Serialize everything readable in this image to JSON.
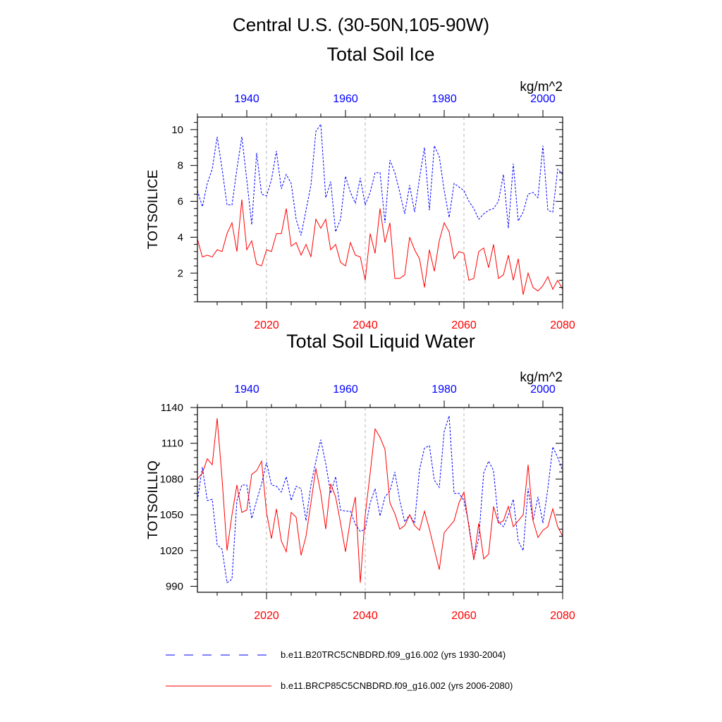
{
  "header": {
    "region": "Central U.S. (30-50N,105-90W)"
  },
  "colors": {
    "historical": "#0000ff",
    "future": "#ff0000",
    "axis": "#000000",
    "gridline": "#b3b3b3"
  },
  "legend": {
    "historical_label": "b.e11.B20TRC5CNBDRD.f09_g16.002 (yrs 1930-2004)",
    "future_label": "b.e11.BRCP85C5CNBDRD.f09_g16.002 (yrs 2006-2080)"
  },
  "chart_data": [
    {
      "type": "line",
      "title": "Total Soil Ice",
      "ylabel": "TOTSOILICE",
      "units": "kg/m^2",
      "ylim": [
        0.4,
        10.7
      ],
      "yticks": [
        2,
        4,
        6,
        8,
        10
      ],
      "bottom_axis": {
        "xlim": [
          2006,
          2080
        ],
        "ticks": [
          "2020",
          "2040",
          "2060",
          "2080"
        ]
      },
      "top_axis": {
        "xlim": [
          1930,
          2004
        ],
        "ticks": [
          "1940",
          "1960",
          "1980",
          "2000"
        ]
      },
      "grid": "dashed vertical lines at bottom-axis ticks",
      "series": [
        {
          "name": "b.e11.B20TRC5CNBDRD.f09_g16.002 (yrs 1930-2004)",
          "axis": "top",
          "style": "dashed",
          "x": [
            1930,
            1931,
            1932,
            1933,
            1934,
            1935,
            1936,
            1937,
            1938,
            1939,
            1940,
            1941,
            1942,
            1943,
            1944,
            1945,
            1946,
            1947,
            1948,
            1949,
            1950,
            1951,
            1952,
            1953,
            1954,
            1955,
            1956,
            1957,
            1958,
            1959,
            1960,
            1961,
            1962,
            1963,
            1964,
            1965,
            1966,
            1967,
            1968,
            1969,
            1970,
            1971,
            1972,
            1973,
            1974,
            1975,
            1976,
            1977,
            1978,
            1979,
            1980,
            1981,
            1982,
            1983,
            1984,
            1985,
            1986,
            1987,
            1988,
            1989,
            1990,
            1991,
            1992,
            1993,
            1994,
            1995,
            1996,
            1997,
            1998,
            1999,
            2000,
            2001,
            2002,
            2003,
            2004
          ],
          "values": [
            6.6,
            5.7,
            7.0,
            7.8,
            9.6,
            7.8,
            5.8,
            5.8,
            7.8,
            9.6,
            7.2,
            4.7,
            8.7,
            6.4,
            6.3,
            7.2,
            8.8,
            6.7,
            7.5,
            7.0,
            5.0,
            4.1,
            5.5,
            6.9,
            9.9,
            10.3,
            6.2,
            7.1,
            4.3,
            5.0,
            7.4,
            6.5,
            5.9,
            7.3,
            5.8,
            6.5,
            7.6,
            7.6,
            4.8,
            8.3,
            7.6,
            6.5,
            5.3,
            6.9,
            5.4,
            7.3,
            9.0,
            5.5,
            9.1,
            8.5,
            6.6,
            5.1,
            7.0,
            6.8,
            6.6,
            6.0,
            5.6,
            5.0,
            5.3,
            5.5,
            5.6,
            6.0,
            7.5,
            4.5,
            8.1,
            4.9,
            5.4,
            6.4,
            6.5,
            6.2,
            9.1,
            5.5,
            5.4,
            7.8,
            7.5
          ]
        },
        {
          "name": "b.e11.BRCP85C5CNBDRD.f09_g16.002 (yrs 2006-2080)",
          "axis": "bottom",
          "style": "solid",
          "x": [
            2006,
            2007,
            2008,
            2009,
            2010,
            2011,
            2012,
            2013,
            2014,
            2015,
            2016,
            2017,
            2018,
            2019,
            2020,
            2021,
            2022,
            2023,
            2024,
            2025,
            2026,
            2027,
            2028,
            2029,
            2030,
            2031,
            2032,
            2033,
            2034,
            2035,
            2036,
            2037,
            2038,
            2039,
            2040,
            2041,
            2042,
            2043,
            2044,
            2045,
            2046,
            2047,
            2048,
            2049,
            2050,
            2051,
            2052,
            2053,
            2054,
            2055,
            2056,
            2057,
            2058,
            2059,
            2060,
            2061,
            2062,
            2063,
            2064,
            2065,
            2066,
            2067,
            2068,
            2069,
            2070,
            2071,
            2072,
            2073,
            2074,
            2075,
            2076,
            2077,
            2078,
            2079,
            2080
          ],
          "values": [
            3.9,
            2.9,
            3.0,
            2.9,
            3.3,
            3.2,
            4.2,
            4.8,
            3.2,
            6.1,
            3.3,
            3.8,
            2.5,
            2.4,
            3.3,
            3.2,
            4.2,
            4.2,
            5.6,
            3.5,
            3.7,
            3.0,
            3.6,
            2.9,
            5.0,
            4.5,
            5.0,
            3.3,
            3.6,
            2.6,
            2.4,
            3.7,
            3.0,
            2.9,
            1.6,
            4.2,
            3.1,
            5.6,
            3.7,
            4.8,
            1.7,
            1.7,
            1.9,
            4.0,
            3.3,
            2.8,
            1.2,
            3.3,
            2.1,
            3.8,
            4.8,
            4.3,
            2.8,
            3.2,
            3.1,
            1.6,
            1.7,
            3.2,
            3.4,
            2.3,
            3.6,
            1.7,
            1.9,
            3.0,
            1.6,
            2.8,
            0.8,
            2.0,
            1.2,
            1.0,
            1.3,
            1.8,
            1.1,
            1.6,
            1.1
          ]
        }
      ]
    },
    {
      "type": "line",
      "title": "Total Soil Liquid Water",
      "ylabel": "TOTSOILLIQ",
      "units": "kg/m^2",
      "ylim": [
        985,
        1140
      ],
      "yticks": [
        990,
        1020,
        1050,
        1080,
        1110,
        1140
      ],
      "bottom_axis": {
        "xlim": [
          2006,
          2080
        ],
        "ticks": [
          "2020",
          "2040",
          "2060",
          "2080"
        ]
      },
      "top_axis": {
        "xlim": [
          1930,
          2004
        ],
        "ticks": [
          "1940",
          "1960",
          "1980",
          "2000"
        ]
      },
      "grid": "dashed vertical lines at bottom-axis ticks",
      "series": [
        {
          "name": "b.e11.B20TRC5CNBDRD.f09_g16.002 (yrs 1930-2004)",
          "axis": "top",
          "style": "dashed",
          "x": [
            1930,
            1931,
            1932,
            1933,
            1934,
            1935,
            1936,
            1937,
            1938,
            1939,
            1940,
            1941,
            1942,
            1943,
            1944,
            1945,
            1946,
            1947,
            1948,
            1949,
            1950,
            1951,
            1952,
            1953,
            1954,
            1955,
            1956,
            1957,
            1958,
            1959,
            1960,
            1961,
            1962,
            1963,
            1964,
            1965,
            1966,
            1967,
            1968,
            1969,
            1970,
            1971,
            1972,
            1973,
            1974,
            1975,
            1976,
            1977,
            1978,
            1979,
            1980,
            1981,
            1982,
            1983,
            1984,
            1985,
            1986,
            1987,
            1988,
            1989,
            1990,
            1991,
            1992,
            1993,
            1994,
            1995,
            1996,
            1997,
            1998,
            1999,
            2000,
            2001,
            2002,
            2003,
            2004
          ],
          "values": [
            1062,
            1090,
            1062,
            1063,
            1025,
            1021,
            993,
            996,
            1062,
            1075,
            1075,
            1047,
            1062,
            1076,
            1094,
            1075,
            1074,
            1069,
            1082,
            1062,
            1074,
            1072,
            1045,
            1075,
            1095,
            1113,
            1093,
            1068,
            1082,
            1054,
            1053,
            1053,
            1042,
            1036,
            1038,
            1060,
            1072,
            1049,
            1065,
            1070,
            1086,
            1062,
            1044,
            1050,
            1043,
            1088,
            1106,
            1108,
            1079,
            1073,
            1120,
            1133,
            1068,
            1068,
            1062,
            1042,
            1013,
            1030,
            1085,
            1095,
            1087,
            1044,
            1040,
            1050,
            1063,
            1028,
            1020,
            1072,
            1045,
            1065,
            1043,
            1072,
            1107,
            1098,
            1087
          ]
        },
        {
          "name": "b.e11.BRCP85C5CNBDRD.f09_g16.002 (yrs 2006-2080)",
          "axis": "bottom",
          "style": "solid",
          "x": [
            2006,
            2007,
            2008,
            2009,
            2010,
            2011,
            2012,
            2013,
            2014,
            2015,
            2016,
            2017,
            2018,
            2019,
            2020,
            2021,
            2022,
            2023,
            2024,
            2025,
            2026,
            2027,
            2028,
            2029,
            2030,
            2031,
            2032,
            2033,
            2034,
            2035,
            2036,
            2037,
            2038,
            2039,
            2040,
            2041,
            2042,
            2043,
            2044,
            2045,
            2046,
            2047,
            2048,
            2049,
            2050,
            2051,
            2052,
            2053,
            2054,
            2055,
            2056,
            2057,
            2058,
            2059,
            2060,
            2061,
            2062,
            2063,
            2064,
            2065,
            2066,
            2067,
            2068,
            2069,
            2070,
            2071,
            2072,
            2073,
            2074,
            2075,
            2076,
            2077,
            2078,
            2079,
            2080
          ],
          "values": [
            1080,
            1085,
            1097,
            1092,
            1131,
            1080,
            1020,
            1050,
            1075,
            1052,
            1054,
            1084,
            1087,
            1095,
            1052,
            1030,
            1055,
            1028,
            1019,
            1052,
            1048,
            1016,
            1032,
            1060,
            1089,
            1068,
            1038,
            1076,
            1065,
            1043,
            1019,
            1046,
            1065,
            993,
            1050,
            1085,
            1122,
            1115,
            1105,
            1060,
            1051,
            1038,
            1041,
            1050,
            1041,
            1037,
            1053,
            1038,
            1021,
            1004,
            1035,
            1040,
            1045,
            1060,
            1069,
            1040,
            1012,
            1043,
            1013,
            1017,
            1057,
            1043,
            1045,
            1057,
            1040,
            1045,
            1050,
            1092,
            1045,
            1031,
            1037,
            1040,
            1055,
            1040,
            1032
          ]
        }
      ]
    }
  ]
}
